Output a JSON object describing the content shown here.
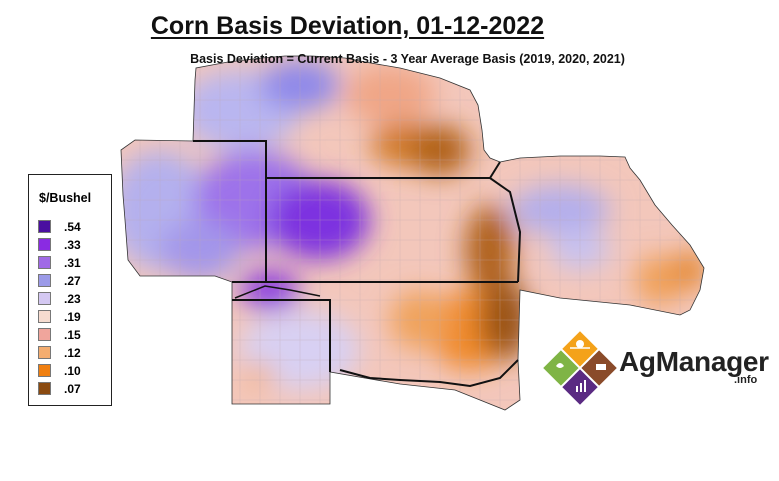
{
  "title": "Corn Basis Deviation, 01-12-2022",
  "subtitle": "Basis Deviation = Current Basis - 3 Year Average Basis (2019, 2020, 2021)",
  "legend": {
    "title": "$/Bushel",
    "items": [
      {
        "label": ".54",
        "color": "#4a0fa0"
      },
      {
        "label": ".33",
        "color": "#8a2be2"
      },
      {
        "label": ".31",
        "color": "#a069e6"
      },
      {
        "label": ".27",
        "color": "#9b9ae8"
      },
      {
        "label": ".23",
        "color": "#d4c8f2"
      },
      {
        "label": ".19",
        "color": "#f6dcd0"
      },
      {
        "label": ".15",
        "color": "#f0a59c"
      },
      {
        "label": ".12",
        "color": "#f4ad70"
      },
      {
        "label": ".10",
        "color": "#f07f10"
      },
      {
        "label": ".07",
        "color": "#8a4a10"
      }
    ]
  },
  "logo": {
    "name": "AgManager",
    "suffix": ".info",
    "colors": {
      "orange": "#f4a21a",
      "brown": "#8a4b2a",
      "green": "#7fb445",
      "purple": "#5a2a82"
    }
  }
}
